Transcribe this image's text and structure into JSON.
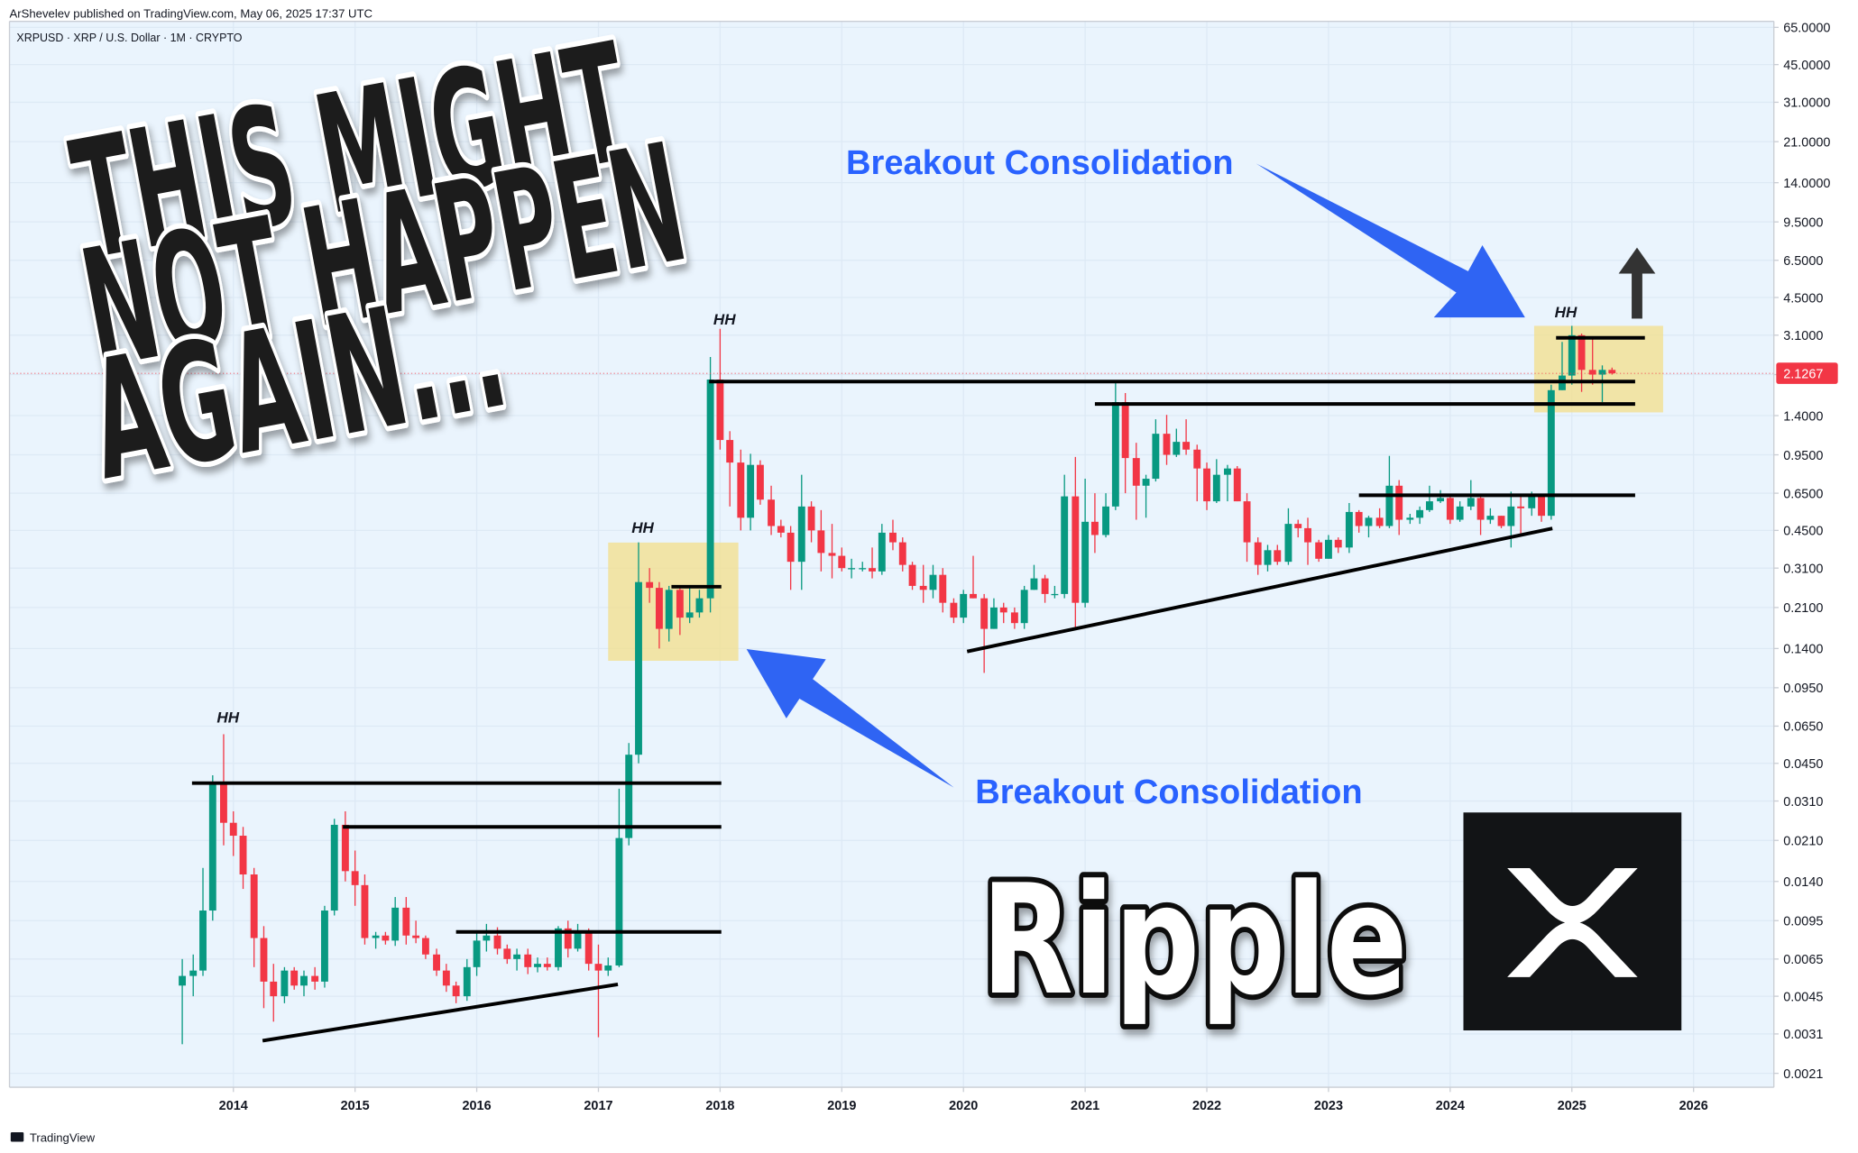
{
  "chart_data": {
    "type": "candlestick",
    "published": "ArShevelev published on TradingView.com, May 06, 2025 17:37 UTC",
    "symbol_label": "XRPUSD · XRP / U.S. Dollar · 1M · CRYPTO",
    "brand": "TradingView",
    "headline": [
      "THIS MIGHT",
      "NOT HAPPEN",
      "AGAIN..."
    ],
    "annotations": [
      "Breakout Consolidation",
      "Breakout Consolidation",
      "HH",
      "HH",
      "HH",
      "HH",
      "Ripple"
    ],
    "log_scale": true,
    "grid": true,
    "up_color": "#089981",
    "down_color": "#f23645",
    "xlim": [
      2012.16,
      2026.66
    ],
    "xticks": [
      2014,
      2015,
      2016,
      2017,
      2018,
      2019,
      2020,
      2021,
      2022,
      2023,
      2024,
      2025,
      2026
    ],
    "ylim": [
      0.00183,
      69
    ],
    "yticks": [
      {
        "value": 65,
        "label": "65.0000"
      },
      {
        "value": 45,
        "label": "45.0000"
      },
      {
        "value": 31,
        "label": "31.0000"
      },
      {
        "value": 21,
        "label": "21.0000"
      },
      {
        "value": 14,
        "label": "14.0000"
      },
      {
        "value": 9.5,
        "label": "9.5000"
      },
      {
        "value": 6.5,
        "label": "6.5000"
      },
      {
        "value": 4.5,
        "label": "4.5000"
      },
      {
        "value": 3.1,
        "label": "3.1000"
      },
      {
        "value": 2.1,
        "label": "2.1000"
      },
      {
        "value": 1.4,
        "label": "1.4000"
      },
      {
        "value": 0.95,
        "label": "0.9500"
      },
      {
        "value": 0.65,
        "label": "0.6500"
      },
      {
        "value": 0.45,
        "label": "0.4500"
      },
      {
        "value": 0.31,
        "label": "0.3100"
      },
      {
        "value": 0.21,
        "label": "0.2100"
      },
      {
        "value": 0.14,
        "label": "0.1400"
      },
      {
        "value": 0.095,
        "label": "0.0950"
      },
      {
        "value": 0.065,
        "label": "0.0650"
      },
      {
        "value": 0.045,
        "label": "0.0450"
      },
      {
        "value": 0.031,
        "label": "0.0310"
      },
      {
        "value": 0.021,
        "label": "0.0210"
      },
      {
        "value": 0.014,
        "label": "0.0140"
      },
      {
        "value": 0.0095,
        "label": "0.0095"
      },
      {
        "value": 0.0065,
        "label": "0.0065"
      },
      {
        "value": 0.0045,
        "label": "0.0045"
      },
      {
        "value": 0.0031,
        "label": "0.0031"
      },
      {
        "value": 0.0021,
        "label": "0.0021"
      }
    ],
    "last_price": 2.1267,
    "x": [
      2013.58,
      2013.67,
      2013.75,
      2013.83,
      2013.92,
      2014,
      2014.08,
      2014.17,
      2014.25,
      2014.33,
      2014.42,
      2014.5,
      2014.58,
      2014.67,
      2014.75,
      2014.83,
      2014.92,
      2015,
      2015.08,
      2015.17,
      2015.25,
      2015.33,
      2015.42,
      2015.5,
      2015.58,
      2015.67,
      2015.75,
      2015.83,
      2015.92,
      2016,
      2016.08,
      2016.17,
      2016.25,
      2016.33,
      2016.42,
      2016.5,
      2016.58,
      2016.67,
      2016.75,
      2016.83,
      2016.92,
      2017,
      2017.08,
      2017.17,
      2017.25,
      2017.33,
      2017.42,
      2017.5,
      2017.58,
      2017.67,
      2017.75,
      2017.83,
      2017.92,
      2018,
      2018.08,
      2018.17,
      2018.25,
      2018.33,
      2018.42,
      2018.5,
      2018.58,
      2018.67,
      2018.75,
      2018.83,
      2018.92,
      2019,
      2019.08,
      2019.17,
      2019.25,
      2019.33,
      2019.42,
      2019.5,
      2019.58,
      2019.67,
      2019.75,
      2019.83,
      2019.92,
      2020,
      2020.08,
      2020.17,
      2020.25,
      2020.33,
      2020.42,
      2020.5,
      2020.58,
      2020.67,
      2020.75,
      2020.83,
      2020.92,
      2021,
      2021.08,
      2021.17,
      2021.25,
      2021.33,
      2021.42,
      2021.5,
      2021.58,
      2021.67,
      2021.75,
      2021.83,
      2021.92,
      2022,
      2022.08,
      2022.17,
      2022.25,
      2022.33,
      2022.42,
      2022.5,
      2022.58,
      2022.67,
      2022.75,
      2022.83,
      2022.92,
      2023,
      2023.08,
      2023.17,
      2023.25,
      2023.33,
      2023.42,
      2023.5,
      2023.58,
      2023.67,
      2023.75,
      2023.83,
      2023.92,
      2024,
      2024.08,
      2024.17,
      2024.25,
      2024.33,
      2024.42,
      2024.5,
      2024.58,
      2024.67,
      2024.75,
      2024.83,
      2024.92,
      2025,
      2025.08,
      2025.17,
      2025.25,
      2025.33
    ],
    "open": [
      0.005,
      0.0055,
      0.0058,
      0.0105,
      0.037,
      0.025,
      0.022,
      0.015,
      0.008,
      0.0052,
      0.0045,
      0.0058,
      0.005,
      0.0055,
      0.0052,
      0.0105,
      0.0245,
      0.0155,
      0.0135,
      0.008,
      0.0082,
      0.0078,
      0.0108,
      0.0082,
      0.008,
      0.0068,
      0.0058,
      0.005,
      0.0045,
      0.006,
      0.0078,
      0.0082,
      0.0072,
      0.0065,
      0.0068,
      0.006,
      0.0062,
      0.006,
      0.0088,
      0.0072,
      0.0085,
      0.0062,
      0.0058,
      0.0061,
      0.0215,
      0.049,
      0.27,
      0.255,
      0.17,
      0.25,
      0.19,
      0.2,
      0.23,
      2.0,
      1.1,
      0.88,
      0.51,
      0.86,
      0.61,
      0.47,
      0.44,
      0.33,
      0.57,
      0.45,
      0.36,
      0.35,
      0.31,
      0.31,
      0.31,
      0.3,
      0.44,
      0.4,
      0.32,
      0.26,
      0.25,
      0.29,
      0.22,
      0.19,
      0.24,
      0.23,
      0.17,
      0.21,
      0.2,
      0.18,
      0.25,
      0.28,
      0.24,
      0.24,
      0.63,
      0.22,
      0.49,
      0.43,
      0.57,
      1.6,
      0.92,
      0.7,
      0.75,
      1.17,
      0.95,
      1.08,
      1.0,
      0.83,
      0.6,
      0.78,
      0.83,
      0.6,
      0.4,
      0.32,
      0.37,
      0.33,
      0.48,
      0.46,
      0.4,
      0.34,
      0.41,
      0.38,
      0.54,
      0.47,
      0.51,
      0.47,
      0.7,
      0.5,
      0.51,
      0.55,
      0.6,
      0.62,
      0.5,
      0.57,
      0.62,
      0.5,
      0.52,
      0.47,
      0.57,
      0.56,
      0.64,
      0.52,
      1.8,
      2.08,
      3.1,
      2.2,
      2.1,
      2.2
    ],
    "high": [
      0.0065,
      0.0068,
      0.016,
      0.04,
      0.06,
      0.028,
      0.024,
      0.016,
      0.009,
      0.0062,
      0.006,
      0.006,
      0.0058,
      0.006,
      0.011,
      0.026,
      0.028,
      0.019,
      0.015,
      0.0085,
      0.0085,
      0.012,
      0.012,
      0.0095,
      0.0082,
      0.0072,
      0.0062,
      0.0052,
      0.0065,
      0.0085,
      0.0092,
      0.0089,
      0.0075,
      0.0072,
      0.0072,
      0.0066,
      0.0066,
      0.009,
      0.0095,
      0.0092,
      0.0088,
      0.0075,
      0.0066,
      0.035,
      0.055,
      0.4,
      0.31,
      0.27,
      0.26,
      0.26,
      0.26,
      0.25,
      2.5,
      3.3,
      1.2,
      1.0,
      0.96,
      0.9,
      0.7,
      0.5,
      0.47,
      0.78,
      0.6,
      0.55,
      0.48,
      0.38,
      0.34,
      0.33,
      0.38,
      0.48,
      0.5,
      0.42,
      0.33,
      0.32,
      0.32,
      0.31,
      0.23,
      0.25,
      0.35,
      0.24,
      0.23,
      0.22,
      0.21,
      0.26,
      0.32,
      0.29,
      0.26,
      0.78,
      0.93,
      0.75,
      0.65,
      0.65,
      1.96,
      1.75,
      1.07,
      0.78,
      1.35,
      1.41,
      1.23,
      1.35,
      1.05,
      0.88,
      0.91,
      0.86,
      0.85,
      0.65,
      0.42,
      0.39,
      0.39,
      0.56,
      0.5,
      0.51,
      0.41,
      0.43,
      0.42,
      0.59,
      0.55,
      0.52,
      0.56,
      0.94,
      0.74,
      0.53,
      0.57,
      0.7,
      0.67,
      0.63,
      0.6,
      0.74,
      0.63,
      0.56,
      0.52,
      0.66,
      0.64,
      0.66,
      0.64,
      1.9,
      2.9,
      3.4,
      3.15,
      3.0,
      2.3,
      2.25
    ],
    "low": [
      0.0028,
      0.0045,
      0.0055,
      0.0095,
      0.02,
      0.018,
      0.013,
      0.006,
      0.004,
      0.0035,
      0.0042,
      0.0048,
      0.0045,
      0.0048,
      0.0049,
      0.01,
      0.014,
      0.011,
      0.0075,
      0.0072,
      0.0075,
      0.0074,
      0.0075,
      0.0076,
      0.0065,
      0.0055,
      0.0047,
      0.0042,
      0.0043,
      0.0055,
      0.007,
      0.0068,
      0.0062,
      0.0058,
      0.0056,
      0.0057,
      0.0058,
      0.0058,
      0.0066,
      0.007,
      0.0058,
      0.003,
      0.0055,
      0.006,
      0.02,
      0.045,
      0.22,
      0.14,
      0.15,
      0.16,
      0.18,
      0.19,
      0.2,
      1.0,
      0.57,
      0.45,
      0.45,
      0.58,
      0.43,
      0.42,
      0.25,
      0.25,
      0.4,
      0.3,
      0.28,
      0.3,
      0.28,
      0.3,
      0.28,
      0.29,
      0.37,
      0.3,
      0.25,
      0.22,
      0.23,
      0.2,
      0.18,
      0.18,
      0.23,
      0.11,
      0.17,
      0.18,
      0.17,
      0.17,
      0.25,
      0.22,
      0.23,
      0.23,
      0.17,
      0.21,
      0.36,
      0.42,
      0.55,
      0.65,
      0.5,
      0.51,
      0.73,
      0.86,
      0.93,
      0.95,
      0.6,
      0.55,
      0.59,
      0.6,
      0.6,
      0.33,
      0.29,
      0.3,
      0.32,
      0.32,
      0.42,
      0.32,
      0.33,
      0.34,
      0.36,
      0.36,
      0.44,
      0.42,
      0.46,
      0.46,
      0.43,
      0.48,
      0.48,
      0.54,
      0.59,
      0.48,
      0.49,
      0.55,
      0.43,
      0.48,
      0.46,
      0.38,
      0.43,
      0.52,
      0.49,
      0.5,
      1.8,
      1.9,
      1.77,
      1.9,
      1.6,
      2.1
    ],
    "close": [
      0.0055,
      0.0058,
      0.0105,
      0.037,
      0.025,
      0.022,
      0.015,
      0.008,
      0.0052,
      0.0045,
      0.0058,
      0.005,
      0.0055,
      0.0052,
      0.0105,
      0.0245,
      0.0155,
      0.0135,
      0.008,
      0.0082,
      0.0078,
      0.0108,
      0.0082,
      0.008,
      0.0068,
      0.0058,
      0.005,
      0.0045,
      0.006,
      0.0078,
      0.0082,
      0.0072,
      0.0065,
      0.0068,
      0.006,
      0.0062,
      0.006,
      0.0088,
      0.0072,
      0.0085,
      0.0062,
      0.0058,
      0.0061,
      0.0215,
      0.049,
      0.27,
      0.255,
      0.17,
      0.25,
      0.19,
      0.2,
      0.23,
      2.0,
      1.1,
      0.88,
      0.51,
      0.86,
      0.61,
      0.47,
      0.44,
      0.33,
      0.57,
      0.45,
      0.36,
      0.35,
      0.31,
      0.31,
      0.31,
      0.3,
      0.44,
      0.4,
      0.32,
      0.26,
      0.25,
      0.29,
      0.22,
      0.19,
      0.24,
      0.23,
      0.17,
      0.21,
      0.2,
      0.18,
      0.25,
      0.28,
      0.24,
      0.24,
      0.63,
      0.22,
      0.49,
      0.43,
      0.57,
      1.6,
      0.92,
      0.7,
      0.75,
      1.17,
      0.95,
      1.08,
      1.0,
      0.83,
      0.6,
      0.78,
      0.83,
      0.6,
      0.4,
      0.32,
      0.37,
      0.33,
      0.48,
      0.46,
      0.4,
      0.34,
      0.41,
      0.38,
      0.54,
      0.47,
      0.51,
      0.47,
      0.7,
      0.5,
      0.51,
      0.55,
      0.6,
      0.62,
      0.5,
      0.57,
      0.62,
      0.5,
      0.52,
      0.47,
      0.57,
      0.56,
      0.64,
      0.52,
      1.8,
      2.08,
      3.1,
      2.2,
      2.1,
      2.2,
      2.1267
    ],
    "lines": [
      {
        "x": [
          2013.66,
          2018.01
        ],
        "y": [
          0.037,
          0.037
        ]
      },
      {
        "x": [
          2014.9,
          2018.01
        ],
        "y": [
          0.024,
          0.024
        ]
      },
      {
        "x": [
          2015.83,
          2018.01
        ],
        "y": [
          0.0085,
          0.0085
        ]
      },
      {
        "x": [
          2014.24,
          2017.16
        ],
        "y": [
          0.0029,
          0.00506
        ]
      },
      {
        "x": [
          2017.6,
          2018.01
        ],
        "y": [
          0.258,
          0.258
        ]
      },
      {
        "x": [
          2017.91,
          2025.52
        ],
        "y": [
          1.96,
          1.96
        ]
      },
      {
        "x": [
          2021.08,
          2025.52
        ],
        "y": [
          1.57,
          1.57
        ]
      },
      {
        "x": [
          2023.25,
          2025.52
        ],
        "y": [
          0.637,
          0.637
        ]
      },
      {
        "x": [
          2020.03,
          2024.84
        ],
        "y": [
          0.136,
          0.459
        ]
      },
      {
        "x": [
          2024.87,
          2025.6
        ],
        "y": [
          3.02,
          3.02
        ]
      }
    ],
    "boxes": [
      {
        "x": [
          2017.08,
          2018.15
        ],
        "y": [
          0.124,
          0.399
        ]
      },
      {
        "x": [
          2024.69,
          2025.75
        ],
        "y": [
          1.445,
          3.4
        ]
      }
    ]
  }
}
